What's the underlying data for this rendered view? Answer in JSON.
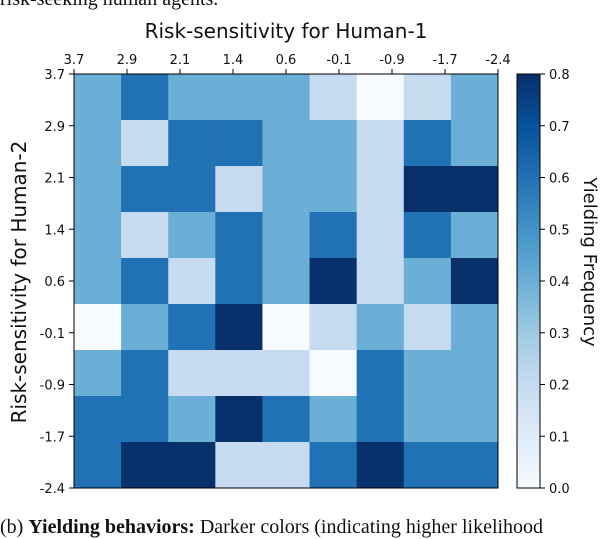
{
  "page": {
    "top_text": "risk-seeking human agents.",
    "bottom_prefix": "(b) ",
    "bottom_bold": "Yielding behaviors:",
    "bottom_rest": " Darker colors (indicating higher likelihood"
  },
  "chart_data": {
    "type": "heatmap",
    "title": "Risk-sensitivity for Human-1",
    "xlabel": "",
    "ylabel": "Risk-sensitivity for Human-2",
    "x_ticks": [
      "3.7",
      "2.9",
      "2.1",
      "1.4",
      "0.6",
      "-0.1",
      "-0.9",
      "-1.7",
      "-2.4"
    ],
    "y_ticks": [
      "3.7",
      "2.9",
      "2.1",
      "1.4",
      "0.6",
      "-0.1",
      "-0.9",
      "-1.7",
      "-2.4"
    ],
    "colorbar": {
      "label": "Yielding Frequency",
      "range": [
        0.0,
        0.8
      ],
      "ticks": [
        "0.0",
        "0.1",
        "0.2",
        "0.3",
        "0.4",
        "0.5",
        "0.6",
        "0.7",
        "0.8"
      ],
      "colormap": "Blues",
      "low_color": "#f7fbff",
      "high_color": "#08306b"
    },
    "values": [
      [
        0.4,
        0.6,
        0.4,
        0.4,
        0.4,
        0.2,
        0.0,
        0.2,
        0.4
      ],
      [
        0.4,
        0.2,
        0.6,
        0.6,
        0.4,
        0.4,
        0.2,
        0.6,
        0.4
      ],
      [
        0.4,
        0.6,
        0.6,
        0.2,
        0.4,
        0.4,
        0.2,
        0.8,
        0.8
      ],
      [
        0.4,
        0.2,
        0.4,
        0.6,
        0.4,
        0.6,
        0.2,
        0.6,
        0.4
      ],
      [
        0.4,
        0.6,
        0.2,
        0.6,
        0.4,
        0.8,
        0.2,
        0.4,
        0.8
      ],
      [
        0.0,
        0.4,
        0.6,
        0.8,
        0.0,
        0.2,
        0.4,
        0.2,
        0.4
      ],
      [
        0.4,
        0.6,
        0.2,
        0.2,
        0.2,
        0.0,
        0.6,
        0.4,
        0.4
      ],
      [
        0.6,
        0.6,
        0.4,
        0.8,
        0.6,
        0.4,
        0.6,
        0.4,
        0.4
      ],
      [
        0.6,
        0.8,
        0.8,
        0.2,
        0.2,
        0.6,
        0.8,
        0.6,
        0.6
      ]
    ]
  }
}
